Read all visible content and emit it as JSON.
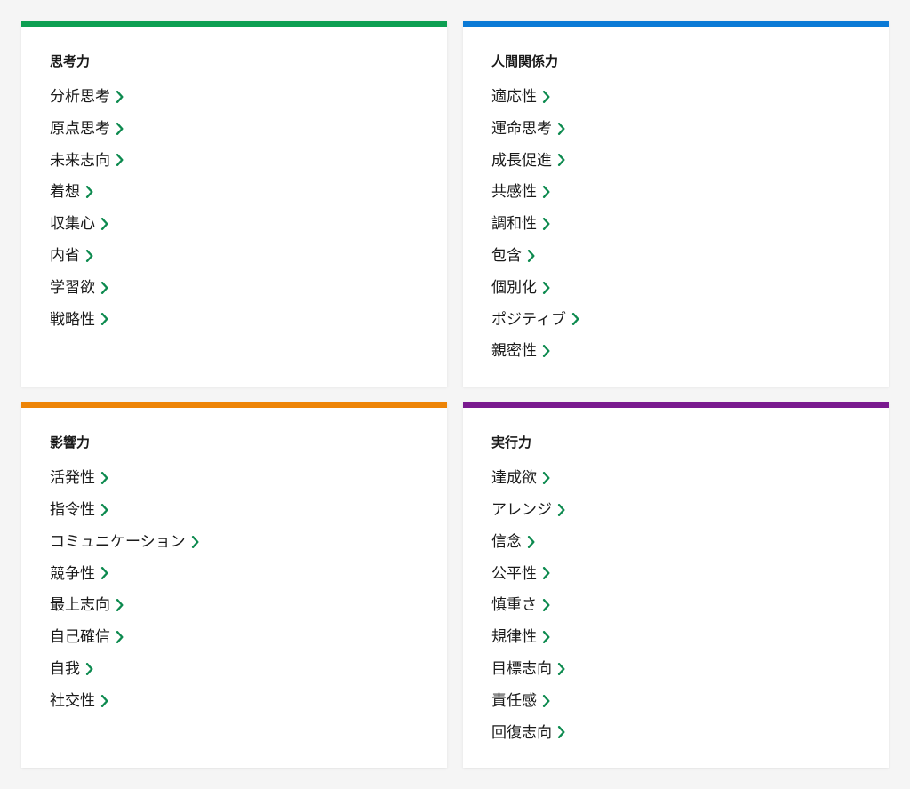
{
  "colors": {
    "chevron": "#0d8a4f",
    "background": "#f5f5f5",
    "card_bg": "#ffffff",
    "text": "#1a1a1a"
  },
  "cards": [
    {
      "id": "strategic-thinking",
      "title": "思考力",
      "border_color": "#0d9f52",
      "items": [
        "分析思考",
        "原点思考",
        "未来志向",
        "着想",
        "収集心",
        "内省",
        "学習欲",
        "戦略性"
      ]
    },
    {
      "id": "relationship-building",
      "title": "人間関係力",
      "border_color": "#0b7ad6",
      "items": [
        "適応性",
        "運命思考",
        "成長促進",
        "共感性",
        "調和性",
        "包含",
        "個別化",
        "ポジティブ",
        "親密性"
      ]
    },
    {
      "id": "influencing",
      "title": "影響力",
      "border_color": "#ed8407",
      "items": [
        "活発性",
        "指令性",
        "コミュニケーション",
        "競争性",
        "最上志向",
        "自己確信",
        "自我",
        "社交性"
      ]
    },
    {
      "id": "executing",
      "title": "実行力",
      "border_color": "#7a1a8f",
      "items": [
        "達成欲",
        "アレンジ",
        "信念",
        "公平性",
        "慎重さ",
        "規律性",
        "目標志向",
        "責任感",
        "回復志向"
      ]
    }
  ]
}
